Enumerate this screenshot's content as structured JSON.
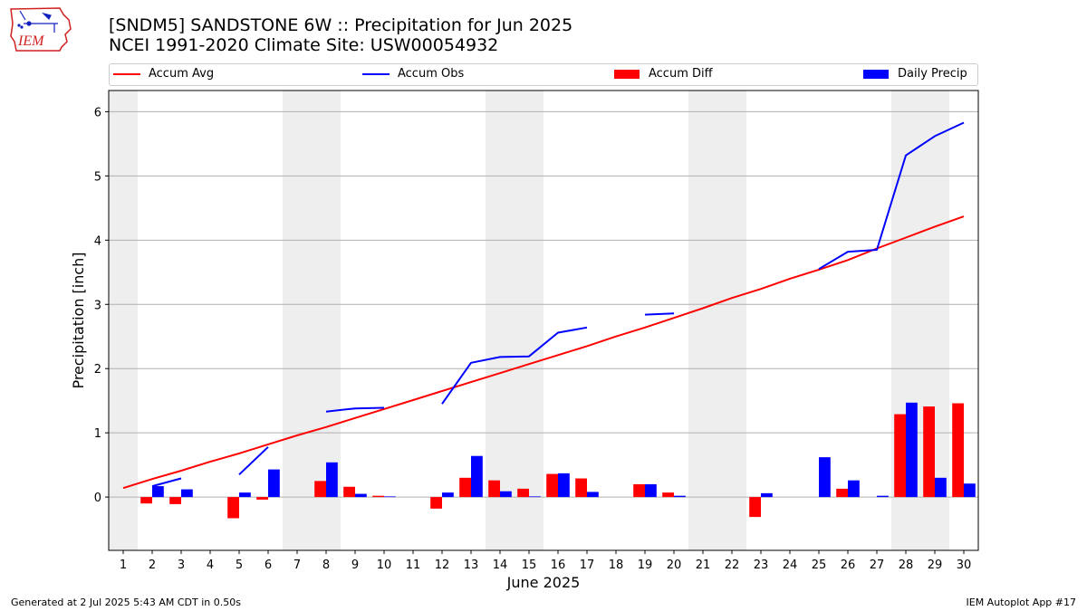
{
  "title": {
    "line1": "[SNDM5] SANDSTONE 6W :: Precipitation for Jun 2025",
    "line2": "NCEI 1991-2020 Climate Site: USW00054932"
  },
  "logo": {
    "text": "IEM",
    "icon": "iem-iowa-logo-icon"
  },
  "legend": {
    "accum_avg": "Accum Avg",
    "accum_obs": "Accum Obs",
    "accum_diff": "Accum Diff",
    "daily_precip": "Daily Precip"
  },
  "colors": {
    "avg": "#ff0000",
    "obs": "#0000ff",
    "diff": "#ff0000",
    "daily": "#0000ff",
    "weekend_band": "#eeeeee",
    "grid": "#b0b0b0"
  },
  "footer": {
    "left": "Generated at 2 Jul 2025 5:43 AM CDT in 0.50s",
    "right": "IEM Autoplot App #17"
  },
  "chart_data": {
    "type": "bar",
    "xlabel": "June 2025",
    "ylabel": "Precipitation [inch]",
    "xlim": [
      0.5,
      30.5
    ],
    "ylim": [
      -0.83,
      6.33
    ],
    "yticks": [
      0,
      1,
      2,
      3,
      4,
      5,
      6
    ],
    "grid": "horizontal",
    "legend_position": "top",
    "days": [
      1,
      2,
      3,
      4,
      5,
      6,
      7,
      8,
      9,
      10,
      11,
      12,
      13,
      14,
      15,
      16,
      17,
      18,
      19,
      20,
      21,
      22,
      23,
      24,
      25,
      26,
      27,
      28,
      29,
      30
    ],
    "weekend_days": [
      1,
      7,
      8,
      14,
      15,
      21,
      22,
      28,
      29
    ],
    "series": [
      {
        "name": "Accum Avg",
        "kind": "line",
        "values": [
          0.14,
          0.28,
          0.41,
          0.55,
          0.68,
          0.82,
          0.96,
          1.09,
          1.23,
          1.37,
          1.51,
          1.65,
          1.79,
          1.93,
          2.07,
          2.21,
          2.35,
          2.5,
          2.64,
          2.79,
          2.94,
          3.1,
          3.24,
          3.4,
          3.54,
          3.69,
          3.87,
          4.04,
          4.21,
          4.37
        ]
      },
      {
        "name": "Accum Obs",
        "kind": "line",
        "values": [
          null,
          0.17,
          0.29,
          null,
          0.35,
          0.78,
          null,
          1.33,
          1.38,
          1.39,
          null,
          1.45,
          2.09,
          2.18,
          2.19,
          2.56,
          2.64,
          null,
          2.84,
          2.86,
          null,
          null,
          null,
          null,
          3.55,
          3.82,
          3.85,
          5.32,
          5.62,
          5.83
        ]
      },
      {
        "name": "Accum Diff",
        "kind": "bar",
        "values": [
          0,
          -0.1,
          -0.11,
          0,
          -0.33,
          -0.04,
          0,
          0.25,
          0.16,
          0.02,
          0,
          -0.18,
          0.3,
          0.26,
          0.13,
          0.36,
          0.29,
          0,
          0.2,
          0.07,
          0,
          0,
          -0.31,
          0,
          0,
          0.13,
          0,
          1.29,
          1.41,
          1.46
        ]
      },
      {
        "name": "Daily Precip",
        "kind": "bar",
        "values": [
          0,
          0.17,
          0.12,
          0,
          0.07,
          0.43,
          0,
          0.54,
          0.05,
          0.01,
          0,
          0.07,
          0.64,
          0.09,
          0.01,
          0.37,
          0.08,
          0,
          0.2,
          0.02,
          0,
          0,
          0.06,
          0,
          0.62,
          0.26,
          0.02,
          1.47,
          0.3,
          0.21
        ]
      }
    ]
  }
}
